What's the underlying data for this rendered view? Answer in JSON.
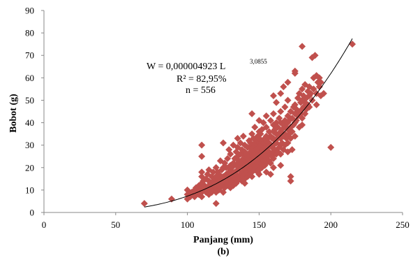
{
  "chart_data": {
    "type": "scatter",
    "title": "",
    "xlabel": "Panjang (mm)",
    "ylabel": "Bobot (g)",
    "caption": "(b)",
    "xlim": [
      0,
      250
    ],
    "ylim": [
      0,
      90
    ],
    "xticks": [
      "0",
      "50",
      "100",
      "150",
      "200",
      "250"
    ],
    "yticks": [
      "0",
      "10",
      "20",
      "30",
      "40",
      "50",
      "60",
      "70",
      "80",
      "90"
    ],
    "grid": false,
    "marker_color": "#c0504d",
    "trendline_color": "#000000",
    "equation": {
      "line1": "W = 0,000004923 L",
      "line1_exponent": "3,0855",
      "line2": "R² = 82,95%",
      "line3": "n = 556"
    },
    "trendline": {
      "a": 4.923e-06,
      "b": 3.0855,
      "x_from": 70,
      "x_to": 215
    },
    "points_note": "556 points; representative subset read from image",
    "points": [
      [
        70,
        4
      ],
      [
        89,
        6
      ],
      [
        100,
        6
      ],
      [
        100,
        8
      ],
      [
        100,
        10
      ],
      [
        102,
        7
      ],
      [
        103,
        9
      ],
      [
        104,
        8
      ],
      [
        105,
        10
      ],
      [
        105,
        7
      ],
      [
        106,
        11
      ],
      [
        107,
        9
      ],
      [
        108,
        8
      ],
      [
        108,
        12
      ],
      [
        109,
        10
      ],
      [
        110,
        7
      ],
      [
        110,
        9
      ],
      [
        110,
        11
      ],
      [
        110,
        13
      ],
      [
        110,
        16
      ],
      [
        110,
        18
      ],
      [
        110,
        25
      ],
      [
        110,
        30
      ],
      [
        111,
        14
      ],
      [
        112,
        10
      ],
      [
        112,
        12
      ],
      [
        113,
        9
      ],
      [
        113,
        15
      ],
      [
        114,
        11
      ],
      [
        114,
        17
      ],
      [
        115,
        8
      ],
      [
        115,
        10
      ],
      [
        115,
        12
      ],
      [
        115,
        14
      ],
      [
        115,
        19
      ],
      [
        116,
        11
      ],
      [
        116,
        13
      ],
      [
        117,
        9
      ],
      [
        117,
        16
      ],
      [
        118,
        12
      ],
      [
        118,
        14
      ],
      [
        118,
        18
      ],
      [
        119,
        10
      ],
      [
        119,
        15
      ],
      [
        120,
        4
      ],
      [
        120,
        9
      ],
      [
        120,
        11
      ],
      [
        120,
        13
      ],
      [
        120,
        16
      ],
      [
        120,
        20
      ],
      [
        121,
        12
      ],
      [
        121,
        18
      ],
      [
        122,
        10
      ],
      [
        122,
        14
      ],
      [
        122,
        17
      ],
      [
        123,
        11
      ],
      [
        123,
        15
      ],
      [
        123,
        23
      ],
      [
        124,
        13
      ],
      [
        124,
        19
      ],
      [
        125,
        9
      ],
      [
        125,
        12
      ],
      [
        125,
        14
      ],
      [
        125,
        16
      ],
      [
        125,
        20
      ],
      [
        125,
        31
      ],
      [
        126,
        11
      ],
      [
        126,
        15
      ],
      [
        126,
        22
      ],
      [
        127,
        13
      ],
      [
        127,
        17
      ],
      [
        127,
        20
      ],
      [
        128,
        12
      ],
      [
        128,
        16
      ],
      [
        128,
        24
      ],
      [
        129,
        14
      ],
      [
        129,
        18
      ],
      [
        129,
        28
      ],
      [
        130,
        11
      ],
      [
        130,
        13
      ],
      [
        130,
        15
      ],
      [
        130,
        17
      ],
      [
        130,
        19
      ],
      [
        130,
        21
      ],
      [
        130,
        26
      ],
      [
        131,
        14
      ],
      [
        131,
        20
      ],
      [
        132,
        12
      ],
      [
        132,
        16
      ],
      [
        132,
        22
      ],
      [
        132,
        30
      ],
      [
        133,
        15
      ],
      [
        133,
        18
      ],
      [
        133,
        24
      ],
      [
        134,
        13
      ],
      [
        134,
        17
      ],
      [
        134,
        21
      ],
      [
        134,
        27
      ],
      [
        135,
        14
      ],
      [
        135,
        16
      ],
      [
        135,
        19
      ],
      [
        135,
        22
      ],
      [
        135,
        25
      ],
      [
        135,
        29
      ],
      [
        135,
        33
      ],
      [
        136,
        15
      ],
      [
        136,
        20
      ],
      [
        136,
        23
      ],
      [
        137,
        17
      ],
      [
        137,
        21
      ],
      [
        137,
        26
      ],
      [
        137,
        31
      ],
      [
        138,
        14
      ],
      [
        138,
        18
      ],
      [
        138,
        22
      ],
      [
        138,
        28
      ],
      [
        139,
        16
      ],
      [
        139,
        20
      ],
      [
        139,
        24
      ],
      [
        139,
        34
      ],
      [
        140,
        13
      ],
      [
        140,
        15
      ],
      [
        140,
        17
      ],
      [
        140,
        19
      ],
      [
        140,
        21
      ],
      [
        140,
        23
      ],
      [
        140,
        25
      ],
      [
        140,
        27
      ],
      [
        140,
        30
      ],
      [
        141,
        18
      ],
      [
        141,
        22
      ],
      [
        141,
        26
      ],
      [
        142,
        16
      ],
      [
        142,
        20
      ],
      [
        142,
        24
      ],
      [
        142,
        29
      ],
      [
        143,
        17
      ],
      [
        143,
        21
      ],
      [
        143,
        25
      ],
      [
        143,
        32
      ],
      [
        144,
        19
      ],
      [
        144,
        23
      ],
      [
        144,
        27
      ],
      [
        144,
        31
      ],
      [
        145,
        16
      ],
      [
        145,
        18
      ],
      [
        145,
        20
      ],
      [
        145,
        22
      ],
      [
        145,
        24
      ],
      [
        145,
        26
      ],
      [
        145,
        28
      ],
      [
        145,
        30
      ],
      [
        145,
        35
      ],
      [
        145,
        44
      ],
      [
        146,
        21
      ],
      [
        146,
        25
      ],
      [
        146,
        29
      ],
      [
        146,
        33
      ],
      [
        147,
        19
      ],
      [
        147,
        23
      ],
      [
        147,
        27
      ],
      [
        147,
        31
      ],
      [
        147,
        38
      ],
      [
        148,
        20
      ],
      [
        148,
        24
      ],
      [
        148,
        28
      ],
      [
        148,
        32
      ],
      [
        149,
        18
      ],
      [
        149,
        22
      ],
      [
        149,
        26
      ],
      [
        149,
        30
      ],
      [
        149,
        34
      ],
      [
        150,
        17
      ],
      [
        150,
        19
      ],
      [
        150,
        21
      ],
      [
        150,
        23
      ],
      [
        150,
        25
      ],
      [
        150,
        27
      ],
      [
        150,
        29
      ],
      [
        150,
        31
      ],
      [
        150,
        33
      ],
      [
        150,
        36
      ],
      [
        150,
        41
      ],
      [
        151,
        22
      ],
      [
        151,
        26
      ],
      [
        151,
        30
      ],
      [
        151,
        35
      ],
      [
        152,
        20
      ],
      [
        152,
        24
      ],
      [
        152,
        28
      ],
      [
        152,
        32
      ],
      [
        152,
        37
      ],
      [
        153,
        23
      ],
      [
        153,
        27
      ],
      [
        153,
        31
      ],
      [
        153,
        40
      ],
      [
        154,
        21
      ],
      [
        154,
        25
      ],
      [
        154,
        29
      ],
      [
        154,
        33
      ],
      [
        155,
        18
      ],
      [
        155,
        22
      ],
      [
        155,
        24
      ],
      [
        155,
        26
      ],
      [
        155,
        28
      ],
      [
        155,
        30
      ],
      [
        155,
        32
      ],
      [
        155,
        34
      ],
      [
        155,
        38
      ],
      [
        155,
        43
      ],
      [
        156,
        25
      ],
      [
        156,
        29
      ],
      [
        156,
        33
      ],
      [
        157,
        23
      ],
      [
        157,
        27
      ],
      [
        157,
        31
      ],
      [
        157,
        36
      ],
      [
        158,
        17
      ],
      [
        158,
        22
      ],
      [
        158,
        26
      ],
      [
        158,
        30
      ],
      [
        158,
        34
      ],
      [
        158,
        41
      ],
      [
        159,
        25
      ],
      [
        159,
        29
      ],
      [
        159,
        33
      ],
      [
        160,
        20
      ],
      [
        160,
        24
      ],
      [
        160,
        27
      ],
      [
        160,
        30
      ],
      [
        160,
        33
      ],
      [
        160,
        36
      ],
      [
        160,
        39
      ],
      [
        160,
        44
      ],
      [
        160,
        52
      ],
      [
        161,
        28
      ],
      [
        161,
        32
      ],
      [
        161,
        37
      ],
      [
        162,
        26
      ],
      [
        162,
        31
      ],
      [
        162,
        35
      ],
      [
        162,
        40
      ],
      [
        162,
        49
      ],
      [
        163,
        27
      ],
      [
        163,
        33
      ],
      [
        163,
        38
      ],
      [
        164,
        29
      ],
      [
        164,
        34
      ],
      [
        164,
        42
      ],
      [
        165,
        21
      ],
      [
        165,
        26
      ],
      [
        165,
        30
      ],
      [
        165,
        33
      ],
      [
        165,
        36
      ],
      [
        165,
        40
      ],
      [
        165,
        45
      ],
      [
        165,
        53
      ],
      [
        166,
        31
      ],
      [
        166,
        37
      ],
      [
        167,
        28
      ],
      [
        167,
        34
      ],
      [
        167,
        39
      ],
      [
        167,
        56
      ],
      [
        168,
        30
      ],
      [
        168,
        35
      ],
      [
        168,
        41
      ],
      [
        168,
        47
      ],
      [
        169,
        33
      ],
      [
        169,
        38
      ],
      [
        170,
        27
      ],
      [
        170,
        31
      ],
      [
        170,
        34
      ],
      [
        170,
        37
      ],
      [
        170,
        40
      ],
      [
        170,
        43
      ],
      [
        170,
        50
      ],
      [
        170,
        58
      ],
      [
        171,
        35
      ],
      [
        171,
        41
      ],
      [
        172,
        14
      ],
      [
        172,
        16
      ],
      [
        172,
        33
      ],
      [
        172,
        38
      ],
      [
        172,
        45
      ],
      [
        173,
        36
      ],
      [
        173,
        42
      ],
      [
        173,
        28
      ],
      [
        174,
        39
      ],
      [
        174,
        47
      ],
      [
        175,
        34
      ],
      [
        175,
        40
      ],
      [
        175,
        44
      ],
      [
        175,
        48
      ],
      [
        175,
        62
      ],
      [
        175,
        63
      ],
      [
        176,
        41
      ],
      [
        176,
        46
      ],
      [
        177,
        43
      ],
      [
        177,
        51
      ],
      [
        178,
        38
      ],
      [
        178,
        45
      ],
      [
        178,
        53
      ],
      [
        179,
        44
      ],
      [
        179,
        49
      ],
      [
        180,
        39
      ],
      [
        180,
        42
      ],
      [
        180,
        46
      ],
      [
        180,
        50
      ],
      [
        180,
        55
      ],
      [
        180,
        74
      ],
      [
        181,
        47
      ],
      [
        181,
        52
      ],
      [
        182,
        44
      ],
      [
        182,
        49
      ],
      [
        182,
        57
      ],
      [
        183,
        46
      ],
      [
        183,
        51
      ],
      [
        184,
        48
      ],
      [
        184,
        54
      ],
      [
        185,
        47
      ],
      [
        185,
        52
      ],
      [
        185,
        56
      ],
      [
        186,
        53
      ],
      [
        187,
        50
      ],
      [
        187,
        69
      ],
      [
        188,
        55
      ],
      [
        188,
        60
      ],
      [
        189,
        70
      ],
      [
        190,
        48
      ],
      [
        190,
        53
      ],
      [
        190,
        61
      ],
      [
        191,
        58
      ],
      [
        192,
        56
      ],
      [
        192,
        60
      ],
      [
        193,
        52
      ],
      [
        193,
        58
      ],
      [
        195,
        53
      ],
      [
        200,
        29
      ],
      [
        215,
        75
      ]
    ]
  }
}
